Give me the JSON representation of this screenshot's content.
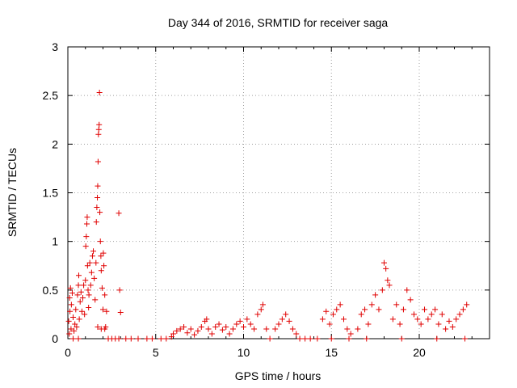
{
  "chart_data": {
    "type": "scatter",
    "title": "Day 344 of 2016, SRMTID for receiver saga",
    "xlabel": "GPS time / hours",
    "ylabel": "SRMTID / TECUs",
    "xlim": [
      0,
      24
    ],
    "ylim": [
      0,
      3
    ],
    "xticks": [
      0,
      5,
      10,
      15,
      20
    ],
    "yticks": [
      0,
      0.5,
      1,
      1.5,
      2,
      2.5,
      3
    ],
    "grid": true,
    "marker": "plus",
    "color": "#e00000",
    "series": [
      {
        "name": "SRMTID",
        "points": [
          [
            0.05,
            0.18
          ],
          [
            0.08,
            0.05
          ],
          [
            0.1,
            0.42
          ],
          [
            0.12,
            0.28
          ],
          [
            0.15,
            0.52
          ],
          [
            0.18,
            0.1
          ],
          [
            0.2,
            0.35
          ],
          [
            0.25,
            0.47
          ],
          [
            0.3,
            0.22
          ],
          [
            0.35,
            0.08
          ],
          [
            0.4,
            0.15
          ],
          [
            0.45,
            0.3
          ],
          [
            0.5,
            0.12
          ],
          [
            0.55,
            0.45
          ],
          [
            0.6,
            0.55
          ],
          [
            0.62,
            0.65
          ],
          [
            0.65,
            0.2
          ],
          [
            0.7,
            0.38
          ],
          [
            0.75,
            0.48
          ],
          [
            0.8,
            0.28
          ],
          [
            0.85,
            0.42
          ],
          [
            0.9,
            0.55
          ],
          [
            0.95,
            0.25
          ],
          [
            1.0,
            0.6
          ],
          [
            1.02,
            0.95
          ],
          [
            1.05,
            1.05
          ],
          [
            1.08,
            1.18
          ],
          [
            1.1,
            1.25
          ],
          [
            1.12,
            0.75
          ],
          [
            1.15,
            0.5
          ],
          [
            1.18,
            0.32
          ],
          [
            1.2,
            0.45
          ],
          [
            1.25,
            0.78
          ],
          [
            1.3,
            0.55
          ],
          [
            1.35,
            0.68
          ],
          [
            1.4,
            0.85
          ],
          [
            1.45,
            0.9
          ],
          [
            1.5,
            0.62
          ],
          [
            1.55,
            0.4
          ],
          [
            1.6,
            0.78
          ],
          [
            1.62,
            1.2
          ],
          [
            1.65,
            1.35
          ],
          [
            1.68,
            1.45
          ],
          [
            1.7,
            1.57
          ],
          [
            1.72,
            1.82
          ],
          [
            1.74,
            2.1
          ],
          [
            1.76,
            2.15
          ],
          [
            1.78,
            2.2
          ],
          [
            1.8,
            2.53
          ],
          [
            1.82,
            1.3
          ],
          [
            1.85,
            1.0
          ],
          [
            1.88,
            0.85
          ],
          [
            1.9,
            0.7
          ],
          [
            1.95,
            0.52
          ],
          [
            2.0,
            0.3
          ],
          [
            2.02,
            0.88
          ],
          [
            2.05,
            0.75
          ],
          [
            2.1,
            0.45
          ],
          [
            2.15,
            0.12
          ],
          [
            2.2,
            0.28
          ],
          [
            1.7,
            0.12
          ],
          [
            1.9,
            0.1
          ],
          [
            2.1,
            0.1
          ],
          [
            2.9,
            1.29
          ],
          [
            2.95,
            0.5
          ],
          [
            3.0,
            0.27
          ],
          [
            0.3,
            0.0
          ],
          [
            0.6,
            0.0
          ],
          [
            2.3,
            0.0
          ],
          [
            2.5,
            0.0
          ],
          [
            2.7,
            0.0
          ],
          [
            2.9,
            0.0
          ],
          [
            3.3,
            0.0
          ],
          [
            3.6,
            0.0
          ],
          [
            4.0,
            0.0
          ],
          [
            4.5,
            0.0
          ],
          [
            4.8,
            0.0
          ],
          [
            5.3,
            0.0
          ],
          [
            5.6,
            0.0
          ],
          [
            5.9,
            0.02
          ],
          [
            6.0,
            0.05
          ],
          [
            6.2,
            0.08
          ],
          [
            6.4,
            0.1
          ],
          [
            6.6,
            0.12
          ],
          [
            6.8,
            0.06
          ],
          [
            7.0,
            0.1
          ],
          [
            7.2,
            0.04
          ],
          [
            7.4,
            0.08
          ],
          [
            7.6,
            0.12
          ],
          [
            7.8,
            0.18
          ],
          [
            7.9,
            0.2
          ],
          [
            8.0,
            0.1
          ],
          [
            8.2,
            0.05
          ],
          [
            8.4,
            0.12
          ],
          [
            8.6,
            0.15
          ],
          [
            8.8,
            0.09
          ],
          [
            9.0,
            0.12
          ],
          [
            9.2,
            0.05
          ],
          [
            9.4,
            0.1
          ],
          [
            9.6,
            0.15
          ],
          [
            9.8,
            0.18
          ],
          [
            10.0,
            0.12
          ],
          [
            10.2,
            0.2
          ],
          [
            10.4,
            0.15
          ],
          [
            10.6,
            0.1
          ],
          [
            10.8,
            0.25
          ],
          [
            11.0,
            0.3
          ],
          [
            11.1,
            0.35
          ],
          [
            11.3,
            0.1
          ],
          [
            11.5,
            0.0
          ],
          [
            11.8,
            0.1
          ],
          [
            12.0,
            0.15
          ],
          [
            12.2,
            0.2
          ],
          [
            12.4,
            0.25
          ],
          [
            12.6,
            0.18
          ],
          [
            12.8,
            0.1
          ],
          [
            13.0,
            0.05
          ],
          [
            13.2,
            0.0
          ],
          [
            13.5,
            0.0
          ],
          [
            13.8,
            0.0
          ],
          [
            14.2,
            0.0
          ],
          [
            14.5,
            0.2
          ],
          [
            14.7,
            0.28
          ],
          [
            14.9,
            0.15
          ],
          [
            15.1,
            0.25
          ],
          [
            15.3,
            0.3
          ],
          [
            15.5,
            0.35
          ],
          [
            15.7,
            0.2
          ],
          [
            15.9,
            0.1
          ],
          [
            16.1,
            0.05
          ],
          [
            16.5,
            0.1
          ],
          [
            16.7,
            0.25
          ],
          [
            16.9,
            0.3
          ],
          [
            17.1,
            0.15
          ],
          [
            17.3,
            0.35
          ],
          [
            17.5,
            0.45
          ],
          [
            17.7,
            0.3
          ],
          [
            17.9,
            0.5
          ],
          [
            18.0,
            0.78
          ],
          [
            18.1,
            0.72
          ],
          [
            18.2,
            0.6
          ],
          [
            18.3,
            0.55
          ],
          [
            18.5,
            0.2
          ],
          [
            18.7,
            0.35
          ],
          [
            18.9,
            0.15
          ],
          [
            19.1,
            0.3
          ],
          [
            19.3,
            0.5
          ],
          [
            19.5,
            0.4
          ],
          [
            19.7,
            0.25
          ],
          [
            19.9,
            0.2
          ],
          [
            20.1,
            0.15
          ],
          [
            20.3,
            0.3
          ],
          [
            20.5,
            0.2
          ],
          [
            20.7,
            0.25
          ],
          [
            20.9,
            0.3
          ],
          [
            21.1,
            0.15
          ],
          [
            21.3,
            0.25
          ],
          [
            21.5,
            0.1
          ],
          [
            21.7,
            0.18
          ],
          [
            21.9,
            0.12
          ],
          [
            22.1,
            0.2
          ],
          [
            22.3,
            0.25
          ],
          [
            22.5,
            0.3
          ],
          [
            22.7,
            0.35
          ],
          [
            22.6,
            0.0
          ],
          [
            21.0,
            0.0
          ],
          [
            19.0,
            0.0
          ],
          [
            17.0,
            0.0
          ],
          [
            16.0,
            0.0
          ],
          [
            15.0,
            0.0
          ]
        ]
      }
    ]
  }
}
